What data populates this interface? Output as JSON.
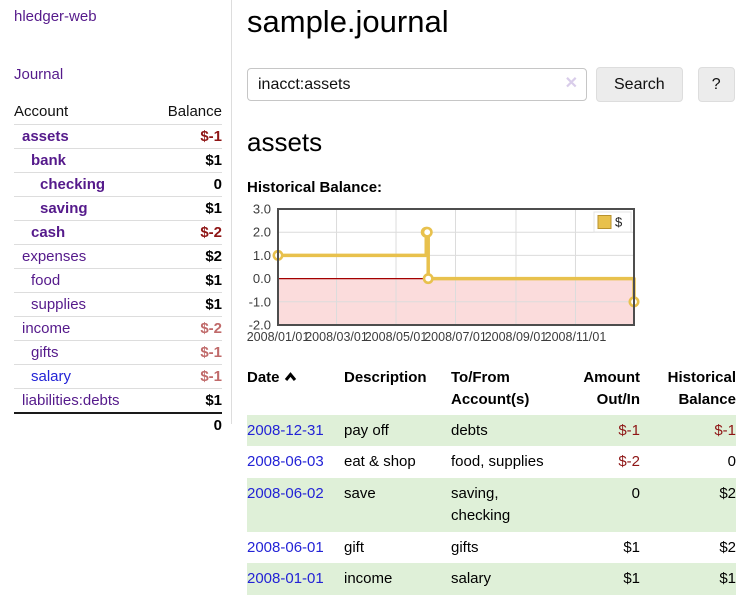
{
  "app": {
    "title": "hledger-web"
  },
  "sidebar": {
    "journal_link": "Journal",
    "table": {
      "headers": [
        "Account",
        "Balance"
      ],
      "rows": [
        {
          "account": "assets",
          "balance": "$-1"
        },
        {
          "account": "bank",
          "balance": "$1"
        },
        {
          "account": "checking",
          "balance": "0"
        },
        {
          "account": "saving",
          "balance": "$1"
        },
        {
          "account": "cash",
          "balance": "$-2"
        },
        {
          "account": "expenses",
          "balance": "$2"
        },
        {
          "account": "food",
          "balance": "$1"
        },
        {
          "account": "supplies",
          "balance": "$1"
        },
        {
          "account": "income",
          "balance": "$-2"
        },
        {
          "account": "gifts",
          "balance": "$-1"
        },
        {
          "account": "salary",
          "balance": "$-1"
        },
        {
          "account": "liabilities:debts",
          "balance": "$1"
        }
      ],
      "total": "0"
    }
  },
  "header": {
    "title": "sample.journal"
  },
  "search": {
    "value": "inacct:assets",
    "search_label": "Search",
    "help_label": "?"
  },
  "icons": {
    "search_clear": "✕"
  },
  "register": {
    "heading": "assets",
    "chart_label": "Historical Balance:"
  },
  "chart_data": {
    "type": "line",
    "title": "Historical Balance",
    "step": true,
    "x": [
      "2008-01-01",
      "2008-06-01",
      "2008-06-02",
      "2008-06-03",
      "2008-12-31"
    ],
    "series": [
      {
        "name": "$",
        "values": [
          1,
          2,
          2,
          0,
          -1
        ]
      }
    ],
    "xlim": [
      "2008-01-01",
      "2008-12-31"
    ],
    "ylim": [
      -2,
      3
    ],
    "yticks": [
      3,
      2,
      1,
      0,
      -1,
      -2
    ],
    "ytick_labels": [
      "3.0",
      "2.0",
      "1.0",
      "0.0",
      "-1.0",
      "-2.0"
    ],
    "xticks": [
      "2008-01-01",
      "2008-03-01",
      "2008-05-01",
      "2008-07-01",
      "2008-09-01",
      "2008-11-01"
    ],
    "xtick_labels": [
      "2008/01/01",
      "2008/03/01",
      "2008/05/01",
      "2008/07/01",
      "2008/09/01",
      "2008/11/01"
    ],
    "grid": true,
    "legend": {
      "label": "$",
      "position": "top-right"
    },
    "colors": {
      "line": "#e8c14d",
      "marker_fill": "#ffffff",
      "negative_region": "#fbdcdc",
      "zero_line": "#a40000",
      "grid": "#dcdcdc",
      "border": "#4d4d4d",
      "tick_text": "#3c3c3c"
    }
  },
  "transactions": {
    "headers": {
      "date": "Date",
      "description": "Description",
      "accounts": "To/From Account(s)",
      "amount": "Amount Out/In",
      "balance": "Historical Balance"
    },
    "rows": [
      {
        "date": "2008-12-31",
        "description": "pay off",
        "accounts": "debts",
        "amount": "$-1",
        "balance": "$-1"
      },
      {
        "date": "2008-06-03",
        "description": "eat & shop",
        "accounts": "food, supplies",
        "amount": "$-2",
        "balance": "0"
      },
      {
        "date": "2008-06-02",
        "description": "save",
        "accounts": "saving, checking",
        "amount": "0",
        "balance": "$2"
      },
      {
        "date": "2008-06-01",
        "description": "gift",
        "accounts": "gifts",
        "amount": "$1",
        "balance": "$2"
      },
      {
        "date": "2008-01-01",
        "description": "income",
        "accounts": "salary",
        "amount": "$1",
        "balance": "$1"
      }
    ]
  },
  "colors": {
    "link_purple": "#551a8b",
    "link_blue": "#2323d6",
    "negative_strong": "#8e1515",
    "negative_muted": "#c06a6a",
    "row_stripe_green": "#dff0d8",
    "chart_gold": "#e8c14d"
  }
}
